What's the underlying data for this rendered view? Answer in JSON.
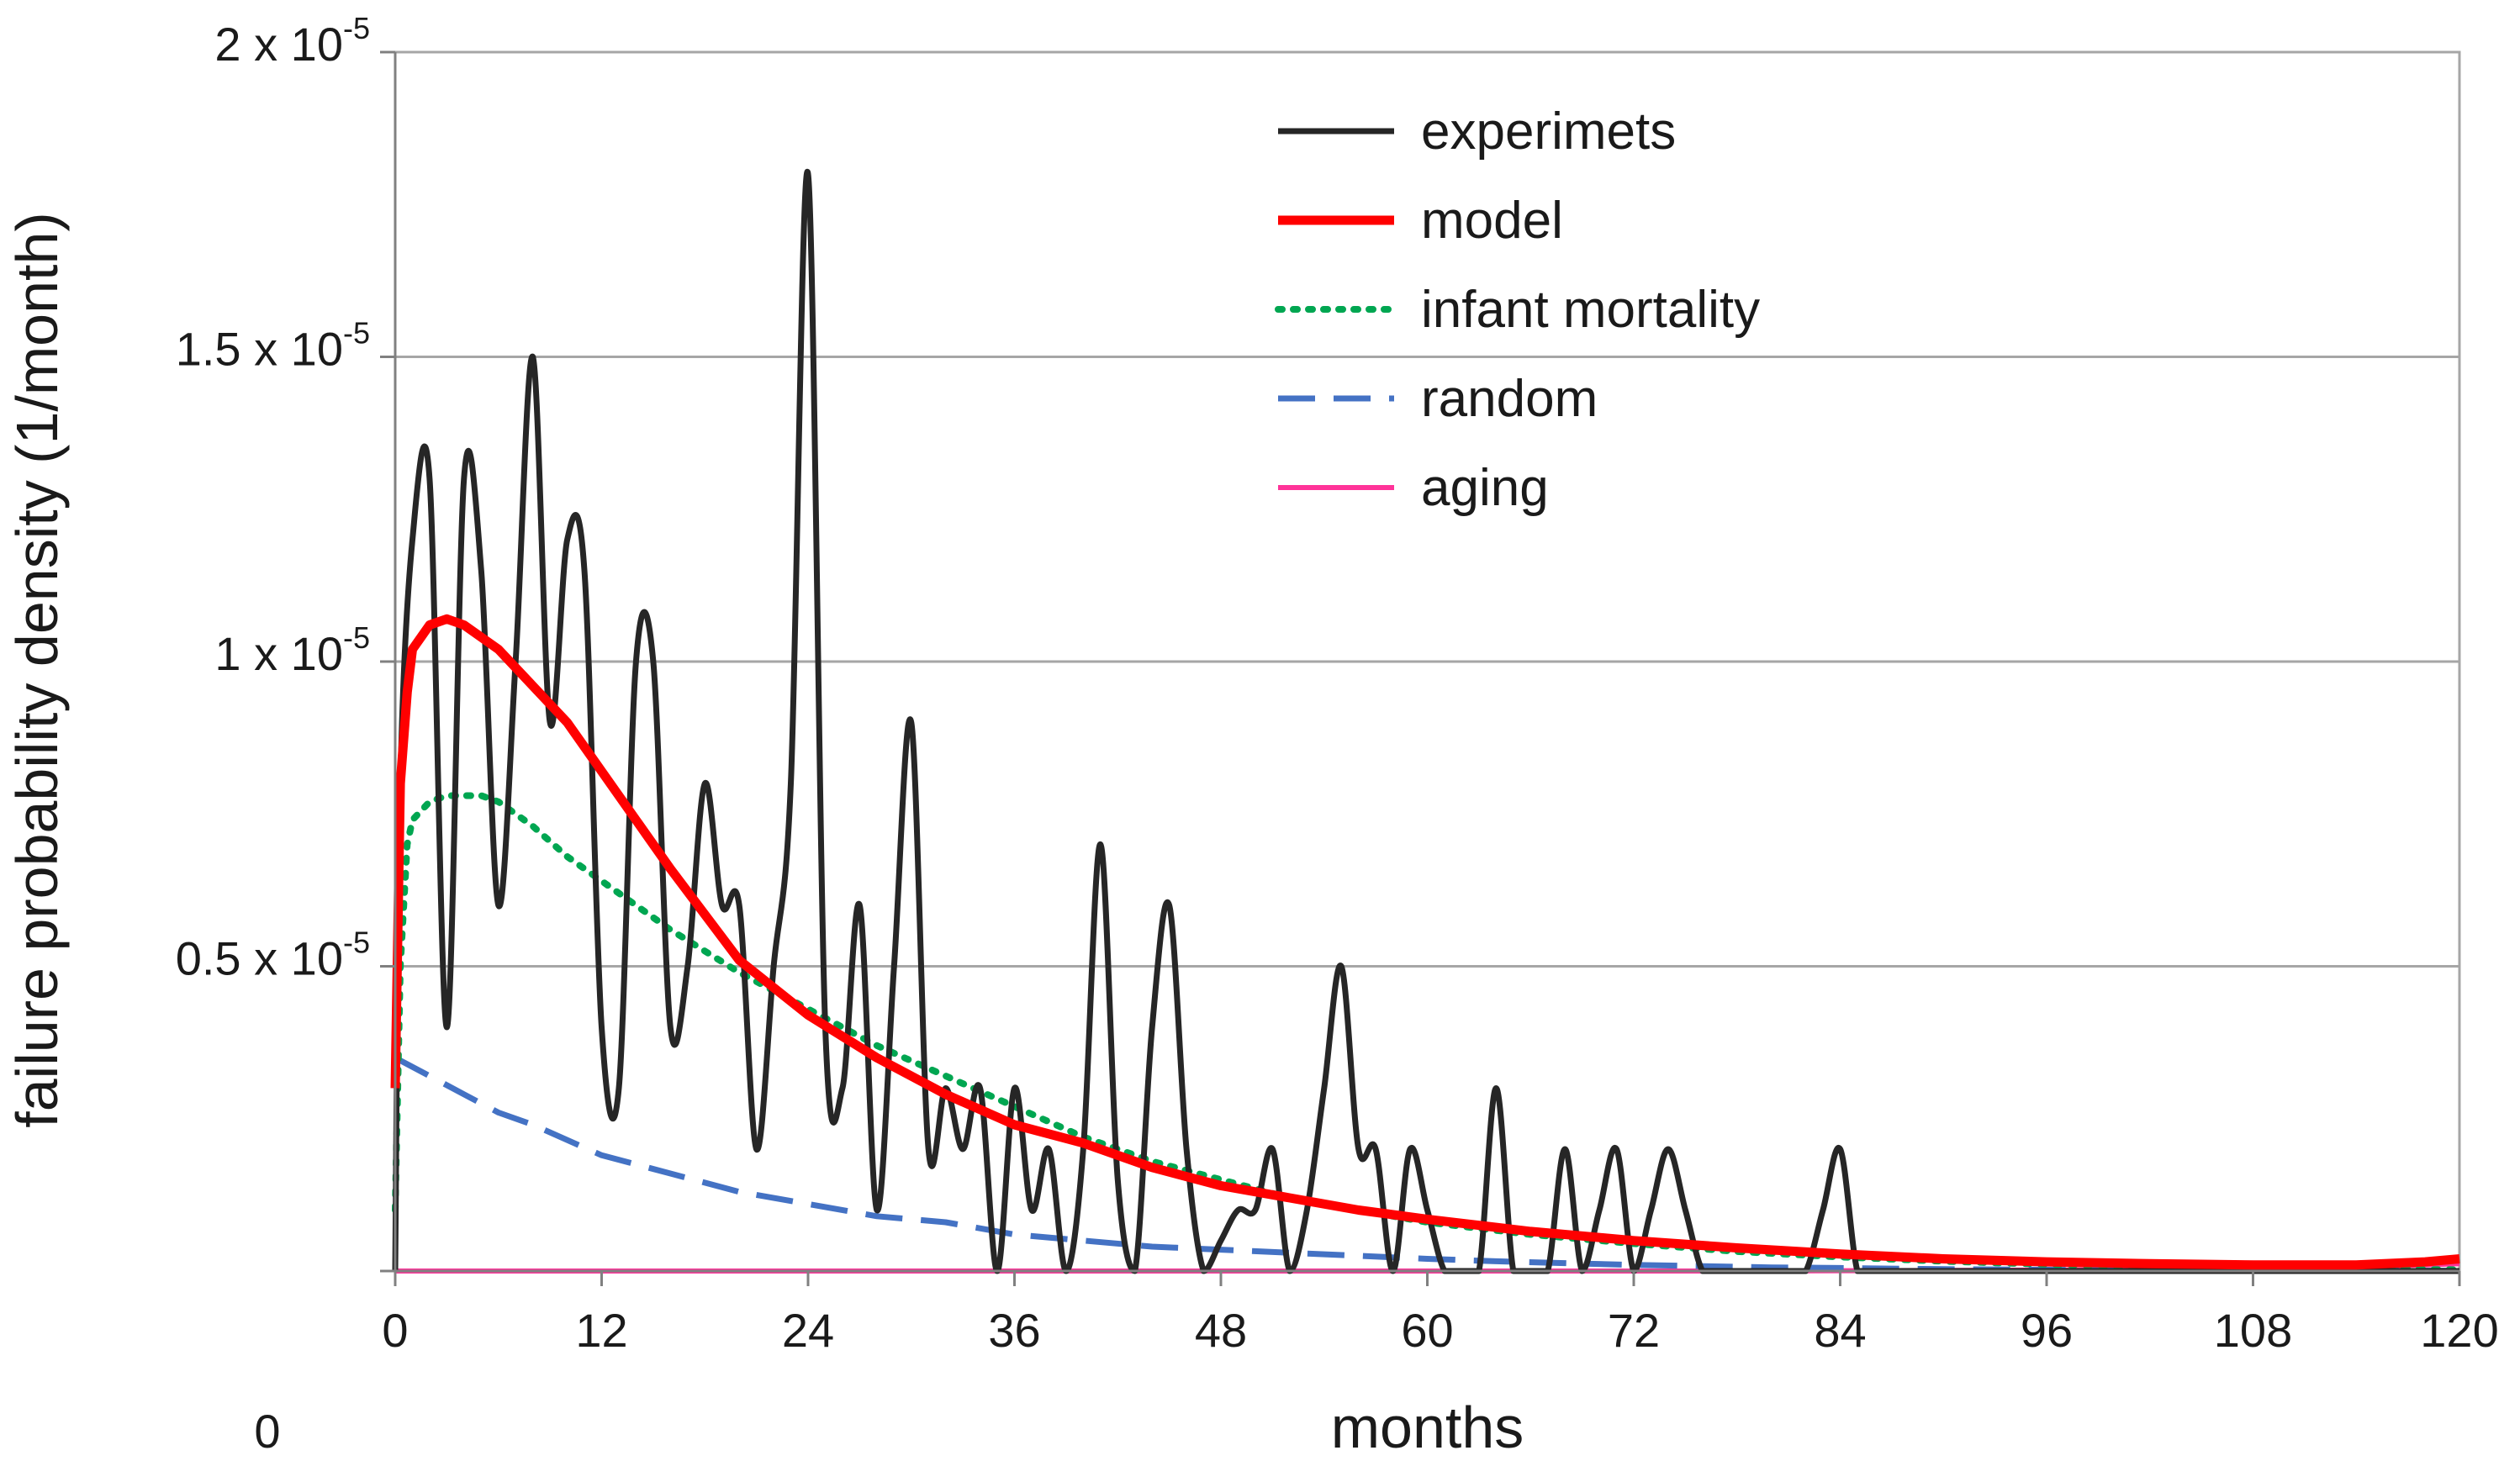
{
  "chart_data": {
    "type": "line",
    "title": "",
    "xlabel": "months",
    "ylabel": "failure probability density (1/month)",
    "xlim": [
      0,
      120
    ],
    "ylim": [
      0,
      2e-05
    ],
    "x_ticks": [
      "0",
      "12",
      "24",
      "36",
      "48",
      "60",
      "72",
      "84",
      "96",
      "108",
      "120"
    ],
    "x_tick_values": [
      0,
      12,
      24,
      36,
      48,
      60,
      72,
      84,
      96,
      108,
      120
    ],
    "y_ticks": [
      {
        "value": 0,
        "label": "0",
        "exp": ""
      },
      {
        "value": 5e-06,
        "label": "0.5 x 10",
        "exp": "-5"
      },
      {
        "value": 1e-05,
        "label": "1 x 10",
        "exp": "-5"
      },
      {
        "value": 1.5e-05,
        "label": "1.5 x 10",
        "exp": "-5"
      },
      {
        "value": 2e-05,
        "label": "2 x 10",
        "exp": "-5"
      }
    ],
    "grid": {
      "horizontal": true,
      "vertical": false
    },
    "legend_position": "top-center",
    "series": [
      {
        "name": "experimets",
        "color": "#262626",
        "style": "solid",
        "x": [
          0,
          0.3,
          1,
          2,
          3,
          4,
          5,
          6,
          7,
          8,
          9,
          10,
          11,
          12,
          13,
          14,
          15,
          16,
          17,
          18,
          19,
          20,
          21,
          22,
          23,
          24,
          25,
          26,
          27,
          28,
          29,
          30,
          31,
          32,
          33,
          34,
          35,
          36,
          37,
          38,
          39,
          40,
          41,
          42,
          43,
          44,
          45,
          46,
          47,
          48,
          49,
          50,
          51,
          52,
          53,
          54,
          55,
          56,
          57,
          58,
          59,
          60,
          61,
          62,
          63,
          64,
          65,
          66,
          67,
          68,
          69,
          70,
          71,
          72,
          73,
          74,
          75,
          76,
          77,
          78,
          79,
          80,
          81,
          82,
          83,
          84,
          85,
          86,
          90,
          100,
          110,
          120
        ],
        "values": [
          0,
          8e-06,
          1.2e-05,
          1.3e-05,
          4e-06,
          1.3e-05,
          1.15e-05,
          6e-06,
          1e-05,
          1.5e-05,
          9e-06,
          1.2e-05,
          1.15e-05,
          4e-06,
          3e-06,
          1e-05,
          1e-05,
          4e-06,
          5e-06,
          8e-06,
          6e-06,
          6e-06,
          2e-06,
          5e-06,
          8e-06,
          1.8e-05,
          4e-06,
          3e-06,
          6e-06,
          1e-06,
          5e-06,
          9e-06,
          2e-06,
          3e-06,
          2e-06,
          3e-06,
          0,
          3e-06,
          1e-06,
          2e-06,
          0,
          2e-06,
          7e-06,
          1.5e-06,
          0,
          4e-06,
          6e-06,
          2e-06,
          0,
          5e-07,
          1e-06,
          1e-06,
          2e-06,
          0,
          1e-06,
          3e-06,
          5e-06,
          2e-06,
          2e-06,
          0,
          2e-06,
          1e-06,
          0,
          0,
          0,
          3e-06,
          0,
          0,
          0,
          2e-06,
          0,
          1e-06,
          2e-06,
          0,
          1e-06,
          2e-06,
          1e-06,
          0,
          0,
          0,
          0,
          0,
          0,
          0,
          1e-06,
          2e-06,
          0,
          0,
          0,
          0,
          0,
          0
        ]
      },
      {
        "name": "model",
        "color": "#ff0000",
        "style": "solid",
        "x": [
          0,
          0.3,
          0.7,
          1,
          2,
          3,
          4,
          6,
          8,
          10,
          12,
          16,
          20,
          24,
          28,
          32,
          36,
          40,
          44,
          48,
          52,
          56,
          60,
          66,
          72,
          78,
          84,
          90,
          96,
          102,
          108,
          114,
          118,
          120
        ],
        "values": [
          3e-06,
          8e-06,
          9.5e-06,
          1.02e-05,
          1.06e-05,
          1.07e-05,
          1.06e-05,
          1.02e-05,
          9.6e-06,
          9e-06,
          8.2e-06,
          6.6e-06,
          5.1e-06,
          4.2e-06,
          3.5e-06,
          2.9e-06,
          2.4e-06,
          2.1e-06,
          1.7e-06,
          1.4e-06,
          1.2e-06,
          1e-06,
          8.5e-07,
          6.5e-07,
          5e-07,
          3.8e-07,
          2.8e-07,
          2e-07,
          1.5e-07,
          1.2e-07,
          1e-07,
          1e-07,
          1.5e-07,
          2e-07
        ]
      },
      {
        "name": "infant mortality",
        "color": "#00a651",
        "style": "dotted",
        "x": [
          0,
          0.3,
          0.7,
          1,
          2,
          3,
          4,
          5,
          6,
          8,
          10,
          12,
          16,
          20,
          24,
          28,
          32,
          36,
          40,
          44,
          48,
          52,
          56,
          60,
          66,
          72,
          78,
          84,
          90,
          96,
          102,
          108,
          114,
          120
        ],
        "values": [
          1e-06,
          5e-06,
          7e-06,
          7.4e-06,
          7.7e-06,
          7.8e-06,
          7.8e-06,
          7.8e-06,
          7.7e-06,
          7.3e-06,
          6.8e-06,
          6.4e-06,
          5.6e-06,
          4.9e-06,
          4.3e-06,
          3.7e-06,
          3.2e-06,
          2.7e-06,
          2.2e-06,
          1.8e-06,
          1.5e-06,
          1.2e-06,
          1e-06,
          8e-07,
          6e-07,
          4.5e-07,
          3.2e-07,
          2.3e-07,
          1.6e-07,
          1.1e-07,
          8e-08,
          5e-08,
          3e-08,
          2e-08
        ]
      },
      {
        "name": "random",
        "color": "#4472c4",
        "style": "dashed",
        "x": [
          0,
          2,
          4,
          6,
          8,
          12,
          16,
          20,
          24,
          28,
          32,
          36,
          40,
          44,
          48,
          52,
          56,
          60,
          64,
          68,
          72,
          76,
          80,
          84,
          90,
          96,
          102,
          108,
          114,
          120
        ],
        "values": [
          3.5e-06,
          3.2e-06,
          2.9e-06,
          2.6e-06,
          2.4e-06,
          1.9e-06,
          1.6e-06,
          1.3e-06,
          1.1e-06,
          9e-07,
          8e-07,
          6e-07,
          5e-07,
          4e-07,
          3.5e-07,
          3e-07,
          2.5e-07,
          2e-07,
          1.6e-07,
          1.3e-07,
          1e-07,
          8e-08,
          6e-08,
          5e-08,
          3e-08,
          2e-08,
          1.5e-08,
          1e-08,
          7e-09,
          5e-09
        ]
      },
      {
        "name": "aging",
        "color": "#ff3399",
        "style": "solid",
        "x": [
          0,
          20,
          40,
          60,
          80,
          100,
          110,
          115,
          118,
          120
        ],
        "values": [
          0,
          0,
          0,
          0,
          0,
          2e-08,
          4e-08,
          8e-08,
          1e-07,
          1.2e-07
        ]
      }
    ]
  }
}
